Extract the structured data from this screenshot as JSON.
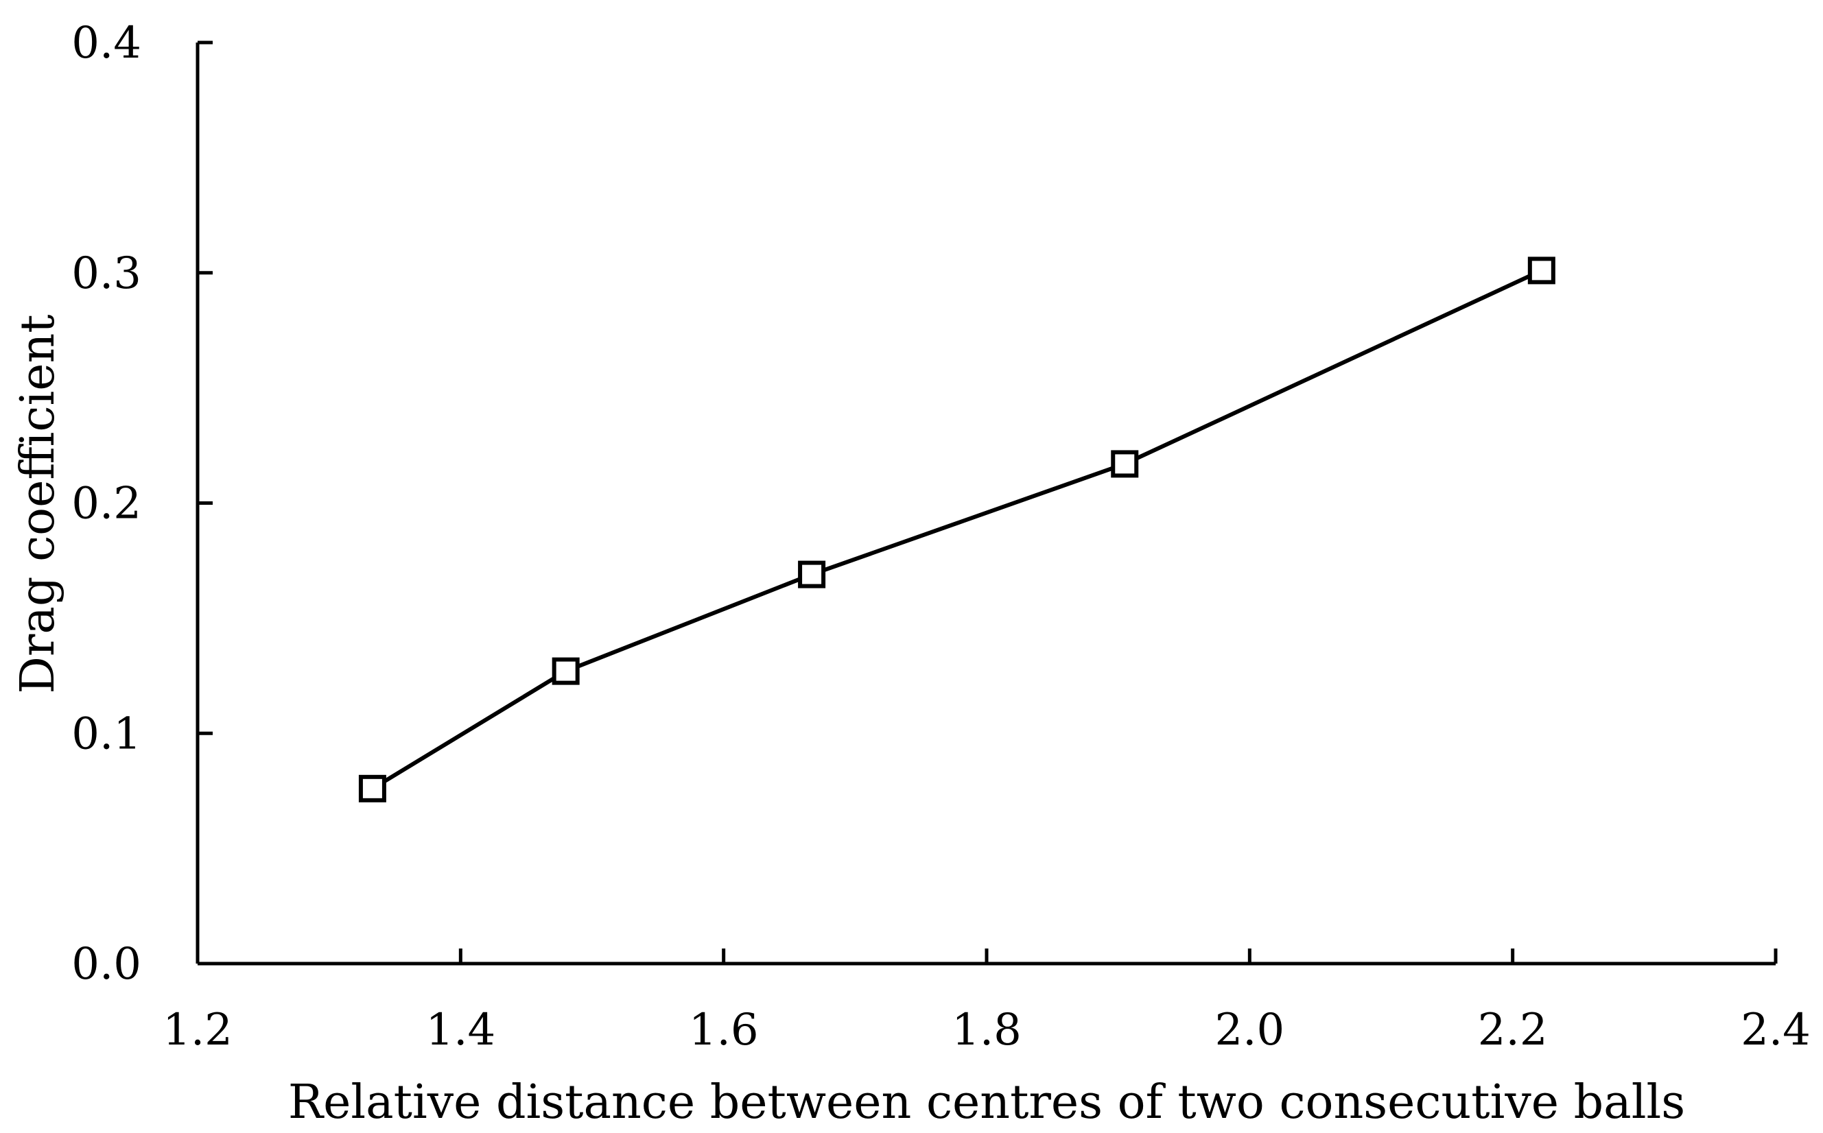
{
  "chart_data": {
    "type": "line",
    "title": "",
    "xlabel": "Relative distance between centres of two consecutive balls",
    "ylabel": "Drag coefficient",
    "xlim": [
      1.2,
      2.4
    ],
    "ylim": [
      0.0,
      0.4
    ],
    "x_ticks": [
      "1.2",
      "1.4",
      "1.6",
      "1.8",
      "2.0",
      "2.2",
      "2.4"
    ],
    "y_ticks": [
      "0.0",
      "0.1",
      "0.2",
      "0.3",
      "0.4"
    ],
    "grid": false,
    "marker": "open-square",
    "series": [
      {
        "name": "Drag coefficient",
        "x": [
          1.333,
          1.48,
          1.667,
          1.905,
          2.222
        ],
        "y": [
          0.076,
          0.127,
          0.169,
          0.217,
          0.301
        ]
      }
    ],
    "colors": {
      "line": "#000000",
      "marker_fill": "#ffffff",
      "axis": "#000000"
    }
  }
}
